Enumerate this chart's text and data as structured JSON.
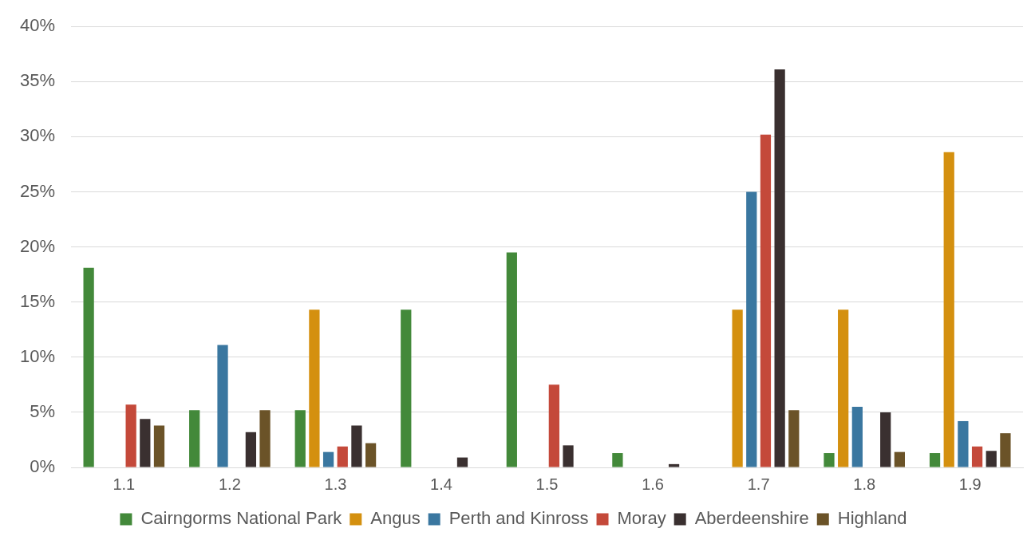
{
  "chart_data": {
    "type": "bar",
    "categories": [
      "1.1",
      "1.2",
      "1.3",
      "1.4",
      "1.5",
      "1.6",
      "1.7",
      "1.8",
      "1.9"
    ],
    "series": [
      {
        "name": "Cairngorms National Park",
        "color": "#43893a",
        "values": [
          18.1,
          5.2,
          5.2,
          14.3,
          19.5,
          1.3,
          0,
          1.3,
          1.3
        ]
      },
      {
        "name": "Angus",
        "color": "#d4900f",
        "values": [
          0,
          0,
          14.3,
          0,
          0,
          0,
          14.3,
          14.3,
          28.6
        ]
      },
      {
        "name": "Perth and Kinross",
        "color": "#3a77a0",
        "values": [
          0,
          11.1,
          1.4,
          0,
          0,
          0,
          25,
          5.5,
          4.2
        ]
      },
      {
        "name": "Moray",
        "color": "#c4493a",
        "values": [
          5.7,
          0,
          1.9,
          0,
          7.5,
          0,
          30.2,
          0,
          1.9
        ]
      },
      {
        "name": "Aberdeenshire",
        "color": "#3a3030",
        "values": [
          4.4,
          3.2,
          3.8,
          0.9,
          2.0,
          0.3,
          36.1,
          5.0,
          1.5
        ]
      },
      {
        "name": "Highland",
        "color": "#6b5328",
        "values": [
          3.8,
          5.2,
          2.2,
          0,
          0,
          0,
          5.2,
          1.4,
          3.1
        ]
      }
    ],
    "ylim": [
      0,
      40
    ],
    "yticks": [
      {
        "value": 0,
        "label": "0%"
      },
      {
        "value": 5,
        "label": "5%"
      },
      {
        "value": 10,
        "label": "10%"
      },
      {
        "value": 15,
        "label": "15%"
      },
      {
        "value": 20,
        "label": "20%"
      },
      {
        "value": 25,
        "label": "25%"
      },
      {
        "value": 30,
        "label": "30%"
      },
      {
        "value": 35,
        "label": "35%"
      },
      {
        "value": 40,
        "label": "40%"
      }
    ],
    "grid": "y",
    "legend": "bottom"
  }
}
